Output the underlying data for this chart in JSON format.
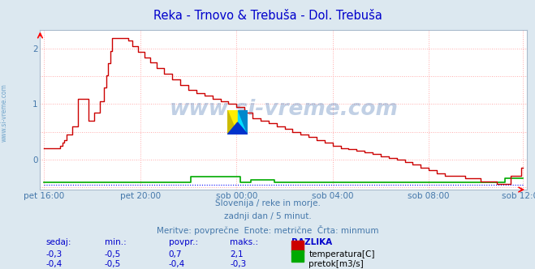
{
  "title": "Reka - Trnovo & Trebuša - Dol. Trebuša",
  "title_color": "#0000cc",
  "bg_color": "#dce8f0",
  "plot_bg_color": "#ffffff",
  "grid_color": "#ffaaaa",
  "xlabel_color": "#4477aa",
  "watermark_color": "#3366aa",
  "xtick_labels": [
    "pet 16:00",
    "pet 20:00",
    "sob 00:00",
    "sob 04:00",
    "sob 08:00",
    "sob 12:00"
  ],
  "xtick_positions": [
    0,
    48,
    96,
    144,
    192,
    239
  ],
  "ylim": [
    -0.55,
    2.35
  ],
  "xlim": [
    -2,
    241
  ],
  "footer_line1": "Slovenija / reke in morje.",
  "footer_line2": "zadnji dan / 5 minut.",
  "footer_line3": "Meritve: povprečne  Enote: metrične  Črta: minmum",
  "footer_color": "#4477aa",
  "table_headers": [
    "sedaj:",
    "min.:",
    "povpr.:",
    "maks.:",
    "RAZLIKA"
  ],
  "table_row1": [
    "-0,3",
    "-0,5",
    "0,7",
    "2,1",
    "temperatura[C]"
  ],
  "table_row2": [
    "-0,4",
    "-0,5",
    "-0,4",
    "-0,3",
    "pretok[m3/s]"
  ],
  "table_color": "#0000cc",
  "temp_color": "#cc0000",
  "flow_color": "#00aa00",
  "level_color": "#0000ff",
  "n_points": 240
}
